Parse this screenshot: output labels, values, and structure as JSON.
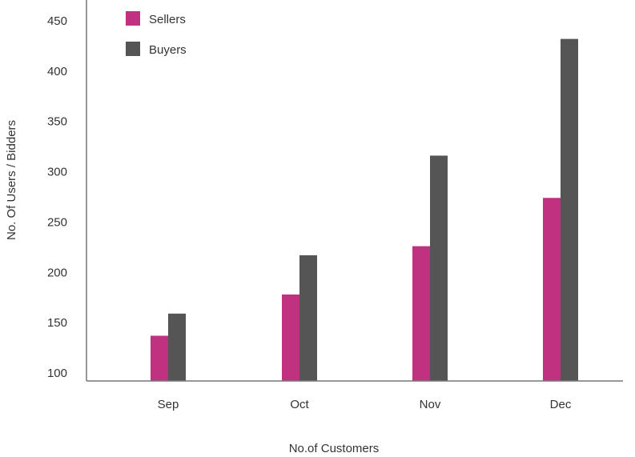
{
  "chart_data": {
    "type": "bar",
    "title": "",
    "xlabel": "No.of Customers",
    "ylabel": "No. Of Users / Bidders",
    "categories": [
      "Sep",
      "Oct",
      "Nov",
      "Dec"
    ],
    "series": [
      {
        "name": "Sellers",
        "color": "#c0317f",
        "values": [
          137,
          178,
          226,
          274
        ]
      },
      {
        "name": "Buyers",
        "color": "#555555",
        "values": [
          159,
          217,
          316,
          432
        ]
      }
    ],
    "ylim": [
      100,
      450
    ],
    "yticks": [
      100,
      150,
      200,
      250,
      300,
      350,
      400,
      450
    ],
    "grid": false,
    "legend_position": "top-left"
  }
}
